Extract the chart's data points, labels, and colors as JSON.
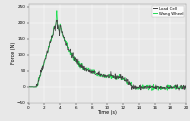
{
  "title": "",
  "xlabel": "Time (s)",
  "ylabel": "Force (N)",
  "xlim": [
    0,
    20
  ],
  "ylim": [
    -50,
    260
  ],
  "yticks": [
    -50,
    0,
    50,
    100,
    150,
    200,
    250
  ],
  "xticks": [
    0,
    2,
    4,
    6,
    8,
    10,
    12,
    14,
    16,
    18,
    20
  ],
  "legend_labels": [
    "Load Cell",
    "Wang Wheel"
  ],
  "lc_color": "#444444",
  "ww_color": "#22dd55",
  "bg_color": "#e8e8e8",
  "figsize": [
    1.9,
    1.21
  ],
  "dpi": 100
}
